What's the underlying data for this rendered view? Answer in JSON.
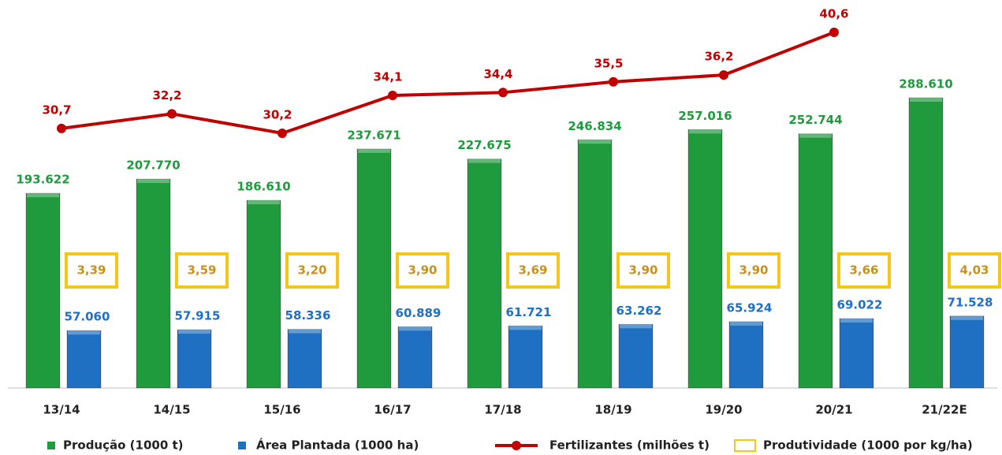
{
  "chart_data": {
    "type": "bar",
    "categories": [
      "13/14",
      "14/15",
      "15/16",
      "16/17",
      "17/18",
      "18/19",
      "19/20",
      "20/21",
      "21/22E"
    ],
    "series": [
      {
        "name": "Produção (1000 t)",
        "color": "#1f9a3d",
        "label_color": "#1f9a3d",
        "values": [
          193622,
          207770,
          186610,
          237671,
          227675,
          246834,
          257016,
          252744,
          288610
        ],
        "value_labels": [
          "193.622",
          "207.770",
          "186.610",
          "237.671",
          "227.675",
          "246.834",
          "257.016",
          "252.744",
          "288.610"
        ]
      },
      {
        "name": "Área Plantada (1000 ha)",
        "color": "#1f6fc2",
        "label_color": "#1f6fc2",
        "values": [
          57060,
          57915,
          58336,
          60889,
          61721,
          63262,
          65924,
          69022,
          71528
        ],
        "value_labels": [
          "57.060",
          "57.915",
          "58.336",
          "60.889",
          "61.721",
          "63.262",
          "65.924",
          "69.022",
          "71.528"
        ]
      },
      {
        "name": "Fertilizantes (milhões t)",
        "type": "line",
        "color": "#c00000",
        "label_color": "#c00000",
        "values": [
          30.7,
          32.2,
          30.2,
          34.1,
          34.4,
          35.5,
          36.2,
          40.6,
          null
        ],
        "value_labels": [
          "30,7",
          "32,2",
          "30,2",
          "34,1",
          "34,4",
          "35,5",
          "36,2",
          "40,6",
          null
        ]
      },
      {
        "name": "Produtividade (1000 por kg/ha)",
        "type": "box",
        "color": "#f5c518",
        "label_color": "#c8921a",
        "values": [
          3.39,
          3.59,
          3.2,
          3.9,
          3.69,
          3.9,
          3.9,
          3.66,
          4.03
        ],
        "value_labels": [
          "3,39",
          "3,59",
          "3,20",
          "3,90",
          "3,69",
          "3,90",
          "3,90",
          "3,66",
          "4,03"
        ]
      }
    ]
  }
}
